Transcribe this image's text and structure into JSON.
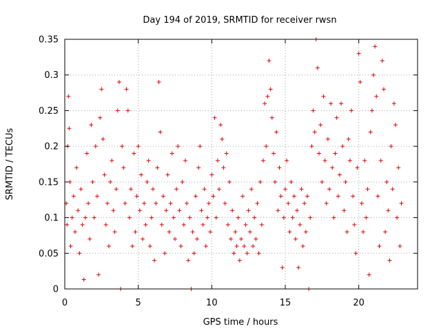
{
  "chart_data": {
    "type": "scatter",
    "title": "Day 194 of 2019, SRMTID for receiver rwsn",
    "xlabel": "GPS time / hours",
    "ylabel": "SRMTID / TECUs",
    "xlim": [
      0,
      24
    ],
    "ylim": [
      0,
      0.35
    ],
    "x_ticks": [
      0,
      5,
      10,
      15,
      20
    ],
    "x_tick_labels": [
      "0",
      "5",
      "10",
      "15",
      "20"
    ],
    "y_ticks": [
      0,
      0.05,
      0.1,
      0.15,
      0.2,
      0.25,
      0.3,
      0.35
    ],
    "y_tick_labels": [
      "0",
      "0.05",
      "0.1",
      "0.15",
      "0.2",
      "0.25",
      "0.3",
      "0.35"
    ],
    "grid": true,
    "marker": "plus",
    "series": [
      {
        "name": "SRMTID",
        "color": "#e00000",
        "points": [
          [
            0.1,
            0.12
          ],
          [
            0.15,
            0.09
          ],
          [
            0.2,
            0.2
          ],
          [
            0.25,
            0.27
          ],
          [
            0.3,
            0.225
          ],
          [
            0.35,
            0.15
          ],
          [
            0.4,
            0.06
          ],
          [
            0.5,
            0.1
          ],
          [
            0.6,
            0.13
          ],
          [
            0.7,
            0.08
          ],
          [
            0.8,
            0.17
          ],
          [
            0.9,
            0.11
          ],
          [
            1.0,
            0.05
          ],
          [
            1.1,
            0.14
          ],
          [
            1.2,
            0.09
          ],
          [
            1.3,
            0.013
          ],
          [
            1.4,
            0.1
          ],
          [
            1.5,
            0.19
          ],
          [
            1.6,
            0.12
          ],
          [
            1.7,
            0.07
          ],
          [
            1.8,
            0.23
          ],
          [
            1.9,
            0.15
          ],
          [
            2.0,
            0.1
          ],
          [
            2.1,
            0.2
          ],
          [
            2.2,
            0.13
          ],
          [
            2.3,
            0.02
          ],
          [
            2.4,
            0.24
          ],
          [
            2.5,
            0.28
          ],
          [
            2.6,
            0.21
          ],
          [
            2.7,
            0.16
          ],
          [
            2.8,
            0.09
          ],
          [
            2.9,
            0.12
          ],
          [
            3.0,
            0.06
          ],
          [
            3.1,
            0.15
          ],
          [
            3.2,
            0.18
          ],
          [
            3.3,
            0.11
          ],
          [
            3.4,
            0.08
          ],
          [
            3.5,
            0.14
          ],
          [
            3.6,
            0.25
          ],
          [
            3.7,
            0.29
          ],
          [
            3.8,
            0.0
          ],
          [
            3.9,
            0.2
          ],
          [
            4.0,
            0.17
          ],
          [
            4.1,
            0.12
          ],
          [
            4.2,
            0.28
          ],
          [
            4.3,
            0.25
          ],
          [
            4.4,
            0.1
          ],
          [
            4.5,
            0.14
          ],
          [
            4.6,
            0.06
          ],
          [
            4.7,
            0.19
          ],
          [
            4.8,
            0.08
          ],
          [
            4.9,
            0.13
          ],
          [
            5.0,
            0.2
          ],
          [
            5.1,
            0.11
          ],
          [
            5.2,
            0.16
          ],
          [
            5.3,
            0.07
          ],
          [
            5.4,
            0.12
          ],
          [
            5.5,
            0.09
          ],
          [
            5.6,
            0.15
          ],
          [
            5.7,
            0.18
          ],
          [
            5.8,
            0.06
          ],
          [
            5.9,
            0.1
          ],
          [
            6.0,
            0.14
          ],
          [
            6.1,
            0.04
          ],
          [
            6.2,
            0.12
          ],
          [
            6.3,
            0.17
          ],
          [
            6.4,
            0.29
          ],
          [
            6.5,
            0.22
          ],
          [
            6.6,
            0.09
          ],
          [
            6.7,
            0.13
          ],
          [
            6.8,
            0.05
          ],
          [
            6.9,
            0.11
          ],
          [
            7.0,
            0.16
          ],
          [
            7.1,
            0.08
          ],
          [
            7.2,
            0.12
          ],
          [
            7.3,
            0.19
          ],
          [
            7.4,
            0.1
          ],
          [
            7.5,
            0.07
          ],
          [
            7.6,
            0.14
          ],
          [
            7.7,
            0.2
          ],
          [
            7.8,
            0.11
          ],
          [
            7.9,
            0.06
          ],
          [
            8.0,
            0.15
          ],
          [
            8.1,
            0.09
          ],
          [
            8.2,
            0.18
          ],
          [
            8.3,
            0.12
          ],
          [
            8.4,
            0.04
          ],
          [
            8.5,
            0.1
          ],
          [
            8.6,
            0.0
          ],
          [
            8.7,
            0.08
          ],
          [
            8.8,
            0.05
          ],
          [
            8.9,
            0.13
          ],
          [
            9.0,
            0.07
          ],
          [
            9.1,
            0.17
          ],
          [
            9.2,
            0.2
          ],
          [
            9.3,
            0.11
          ],
          [
            9.4,
            0.09
          ],
          [
            9.5,
            0.14
          ],
          [
            9.6,
            0.06
          ],
          [
            9.7,
            0.1
          ],
          [
            9.8,
            0.12
          ],
          [
            9.9,
            0.08
          ],
          [
            10.0,
            0.16
          ],
          [
            10.1,
            0.13
          ],
          [
            10.2,
            0.24
          ],
          [
            10.3,
            0.1
          ],
          [
            10.4,
            0.18
          ],
          [
            10.5,
            0.14
          ],
          [
            10.6,
            0.23
          ],
          [
            10.7,
            0.21
          ],
          [
            10.8,
            0.17
          ],
          [
            10.9,
            0.12
          ],
          [
            11.0,
            0.19
          ],
          [
            11.1,
            0.09
          ],
          [
            11.2,
            0.15
          ],
          [
            11.3,
            0.07
          ],
          [
            11.4,
            0.11
          ],
          [
            11.5,
            0.05
          ],
          [
            11.6,
            0.08
          ],
          [
            11.7,
            0.06
          ],
          [
            11.8,
            0.1
          ],
          [
            11.9,
            0.04
          ],
          [
            12.0,
            0.07
          ],
          [
            12.1,
            0.13
          ],
          [
            12.2,
            0.06
          ],
          [
            12.3,
            0.09
          ],
          [
            12.4,
            0.05
          ],
          [
            12.5,
            0.11
          ],
          [
            12.6,
            0.08
          ],
          [
            12.7,
            0.14
          ],
          [
            12.8,
            0.06
          ],
          [
            12.9,
            0.1
          ],
          [
            13.0,
            0.07
          ],
          [
            13.1,
            0.12
          ],
          [
            13.2,
            0.05
          ],
          [
            13.3,
            0.15
          ],
          [
            13.4,
            0.09
          ],
          [
            13.5,
            0.18
          ],
          [
            13.6,
            0.26
          ],
          [
            13.7,
            0.2
          ],
          [
            13.8,
            0.27
          ],
          [
            13.9,
            0.32
          ],
          [
            14.0,
            0.28
          ],
          [
            14.1,
            0.24
          ],
          [
            14.2,
            0.19
          ],
          [
            14.3,
            0.15
          ],
          [
            14.4,
            0.22
          ],
          [
            14.5,
            0.11
          ],
          [
            14.6,
            0.17
          ],
          [
            14.7,
            0.13
          ],
          [
            14.8,
            0.03
          ],
          [
            14.9,
            0.1
          ],
          [
            15.0,
            0.14
          ],
          [
            15.1,
            0.18
          ],
          [
            15.2,
            0.12
          ],
          [
            15.3,
            0.08
          ],
          [
            15.4,
            0.15
          ],
          [
            15.5,
            0.1
          ],
          [
            15.6,
            0.13
          ],
          [
            15.7,
            0.07
          ],
          [
            15.8,
            0.11
          ],
          [
            15.9,
            0.03
          ],
          [
            16.0,
            0.09
          ],
          [
            16.1,
            0.14
          ],
          [
            16.2,
            0.06
          ],
          [
            16.3,
            0.12
          ],
          [
            16.4,
            0.08
          ],
          [
            16.5,
            0.13
          ],
          [
            16.6,
            0.0
          ],
          [
            16.7,
            0.1
          ],
          [
            16.8,
            0.2
          ],
          [
            16.9,
            0.25
          ],
          [
            17.0,
            0.22
          ],
          [
            17.1,
            0.35
          ],
          [
            17.2,
            0.31
          ],
          [
            17.3,
            0.19
          ],
          [
            17.4,
            0.23
          ],
          [
            17.5,
            0.15
          ],
          [
            17.6,
            0.27
          ],
          [
            17.7,
            0.18
          ],
          [
            17.8,
            0.12
          ],
          [
            17.9,
            0.21
          ],
          [
            18.0,
            0.14
          ],
          [
            18.1,
            0.26
          ],
          [
            18.2,
            0.17
          ],
          [
            18.3,
            0.1
          ],
          [
            18.4,
            0.19
          ],
          [
            18.5,
            0.24
          ],
          [
            18.6,
            0.13
          ],
          [
            18.7,
            0.16
          ],
          [
            18.8,
            0.26
          ],
          [
            18.9,
            0.2
          ],
          [
            19.0,
            0.11
          ],
          [
            19.1,
            0.15
          ],
          [
            19.2,
            0.08
          ],
          [
            19.3,
            0.21
          ],
          [
            19.4,
            0.18
          ],
          [
            19.5,
            0.25
          ],
          [
            19.6,
            0.13
          ],
          [
            19.7,
            0.09
          ],
          [
            19.8,
            0.05
          ],
          [
            19.9,
            0.17
          ],
          [
            20.0,
            0.33
          ],
          [
            20.1,
            0.29
          ],
          [
            20.2,
            0.12
          ],
          [
            20.3,
            0.08
          ],
          [
            20.4,
            0.18
          ],
          [
            20.5,
            0.1
          ],
          [
            20.6,
            0.14
          ],
          [
            20.7,
            0.02
          ],
          [
            20.8,
            0.22
          ],
          [
            20.9,
            0.25
          ],
          [
            21.0,
            0.3
          ],
          [
            21.1,
            0.34
          ],
          [
            21.2,
            0.27
          ],
          [
            21.3,
            0.13
          ],
          [
            21.4,
            0.06
          ],
          [
            21.5,
            0.18
          ],
          [
            21.6,
            0.32
          ],
          [
            21.7,
            0.28
          ],
          [
            21.8,
            0.08
          ],
          [
            21.9,
            0.15
          ],
          [
            22.0,
            0.11
          ],
          [
            22.1,
            0.04
          ],
          [
            22.2,
            0.2
          ],
          [
            22.3,
            0.14
          ],
          [
            22.4,
            0.26
          ],
          [
            22.5,
            0.23
          ],
          [
            22.6,
            0.1
          ],
          [
            22.7,
            0.17
          ],
          [
            22.8,
            0.06
          ],
          [
            22.9,
            0.12
          ]
        ]
      }
    ]
  }
}
